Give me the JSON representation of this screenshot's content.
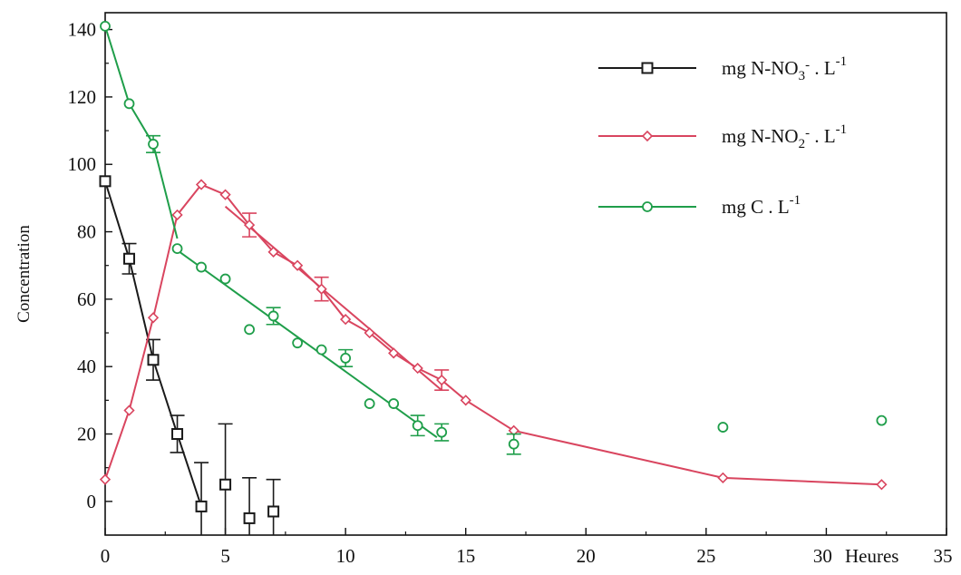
{
  "chart_data": {
    "type": "line",
    "ylabel": "Concentration",
    "xlabel": "Heures",
    "xlim": [
      0,
      35
    ],
    "ylim": [
      -10,
      145
    ],
    "xticks": [
      0,
      5,
      10,
      15,
      20,
      25,
      30,
      35
    ],
    "yticks": [
      0,
      20,
      40,
      60,
      80,
      100,
      120,
      140
    ],
    "grid": false,
    "legend_position": "top-right",
    "colors": {
      "nitrate": "#1a1a1a",
      "nitrite": "#d9455f",
      "carbon": "#1f9e4a"
    },
    "series": [
      {
        "key": "nitrate",
        "name": "mg N-NO3- . L-1",
        "legend": {
          "base": "mg N-NO",
          "sub": "3",
          "sup": "-",
          "rest": " . L",
          "sup2": "-1"
        },
        "marker": "square",
        "color": "#1a1a1a",
        "x": [
          0,
          1,
          2,
          3,
          4,
          5,
          6,
          7
        ],
        "y": [
          95,
          72,
          42,
          20,
          -1.5,
          5,
          -5,
          -3
        ],
        "err": [
          0,
          4.5,
          6,
          5.5,
          13,
          18,
          12,
          9.5
        ],
        "lines": [
          {
            "x": [
              0,
              1,
              2,
              3,
              4
            ],
            "y": [
              95,
              72,
              42,
              20,
              -1.5
            ]
          }
        ]
      },
      {
        "key": "nitrite",
        "name": "mg N-NO2- . L-1",
        "legend": {
          "base": "mg N-NO",
          "sub": "2",
          "sup": "-",
          "rest": " . L",
          "sup2": "-1"
        },
        "marker": "diamond",
        "color": "#d9455f",
        "x": [
          0,
          1,
          2,
          3,
          4,
          5,
          6,
          7,
          8,
          9,
          10,
          11,
          12,
          13,
          14,
          15,
          17,
          25.7,
          32.3
        ],
        "y": [
          6.5,
          27,
          54.5,
          85,
          94,
          91,
          82,
          74,
          70,
          63,
          54,
          50,
          44,
          39.5,
          36,
          30,
          21,
          7,
          5
        ],
        "err": [
          0,
          0,
          0,
          0,
          0,
          0,
          3.5,
          0,
          0,
          3.5,
          0,
          0,
          0,
          0,
          3,
          0,
          0,
          0,
          0
        ],
        "lines": [
          {
            "x": [
              0,
              1,
              2,
              3,
              4,
              5,
              6,
              7,
              8,
              9,
              10,
              11,
              12,
              13,
              14,
              15,
              17,
              25.7,
              32.3
            ],
            "y": [
              6.5,
              27,
              54.5,
              85,
              94,
              91,
              82,
              74,
              70,
              63,
              54,
              50,
              44,
              39.5,
              36,
              30,
              21,
              7,
              5
            ]
          },
          {
            "x": [
              5,
              14
            ],
            "y": [
              87.5,
              33
            ]
          }
        ]
      },
      {
        "key": "carbon",
        "name": "mg C . L-1",
        "legend": {
          "base": "mg C",
          "sub": "",
          "sup": "",
          "rest": " . L",
          "sup2": "-1"
        },
        "marker": "circle",
        "color": "#1f9e4a",
        "x": [
          0,
          1,
          2,
          3,
          4,
          5,
          6,
          7,
          8,
          9,
          10,
          11,
          12,
          13,
          14,
          17,
          25.7,
          32.3
        ],
        "y": [
          141,
          118,
          106,
          75,
          69.5,
          66,
          51,
          55,
          47,
          45,
          42.5,
          29,
          29,
          22.5,
          20.5,
          17,
          22,
          24
        ],
        "err": [
          0,
          0,
          2.5,
          0,
          0,
          0,
          0,
          2.5,
          0,
          0,
          2.5,
          0,
          0,
          3,
          2.5,
          3,
          0,
          0
        ],
        "lines": [
          {
            "x": [
              0,
              1,
              2,
              3
            ],
            "y": [
              141,
              118,
              106,
              78
            ]
          },
          {
            "x": [
              3,
              13.8
            ],
            "y": [
              74.5,
              19
            ]
          }
        ]
      }
    ]
  }
}
